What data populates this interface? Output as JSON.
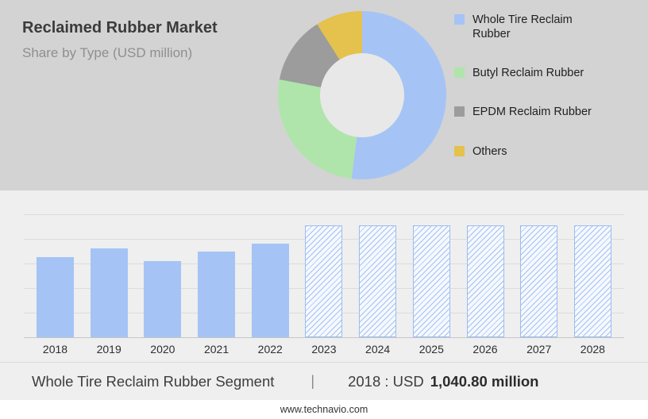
{
  "header": {
    "title": "Reclaimed Rubber Market",
    "subtitle": "Share by Type (USD million)"
  },
  "chart_data": [
    {
      "type": "pie",
      "donut": true,
      "title": "Reclaimed Rubber Market — Share by Type (USD million)",
      "labels": [
        "Whole Tire Reclaim Rubber",
        "Butyl Reclaim Rubber",
        "EPDM Reclaim Rubber",
        "Others"
      ],
      "values": [
        52,
        26,
        13,
        9
      ],
      "colors": [
        "#a5c4f5",
        "#afe5ab",
        "#9c9c9c",
        "#e5c14d"
      ],
      "legend_position": "right",
      "hole_color": "#e8e8e8"
    },
    {
      "type": "bar",
      "categories": [
        "2018",
        "2019",
        "2020",
        "2021",
        "2022",
        "2023",
        "2024",
        "2025",
        "2026",
        "2027",
        "2028"
      ],
      "values": [
        1040.8,
        1160,
        990,
        1110,
        1220,
        1460,
        1460,
        1460,
        1460,
        1460,
        1460
      ],
      "forecast_start": "2023",
      "ylim": [
        0,
        1600
      ],
      "xlabel": "",
      "ylabel": "",
      "grid": true,
      "bar_color": "#a5c4f5",
      "forecast_style": "hatched",
      "known_points": {
        "2018": "USD 1,040.80 million"
      }
    }
  ],
  "caption": {
    "segment": "Whole Tire Reclaim Rubber Segment",
    "separator": "|",
    "stat_prefix": "2018 : USD",
    "stat_value": "1,040.80 million"
  },
  "footer": {
    "url": "www.technavio.com"
  }
}
